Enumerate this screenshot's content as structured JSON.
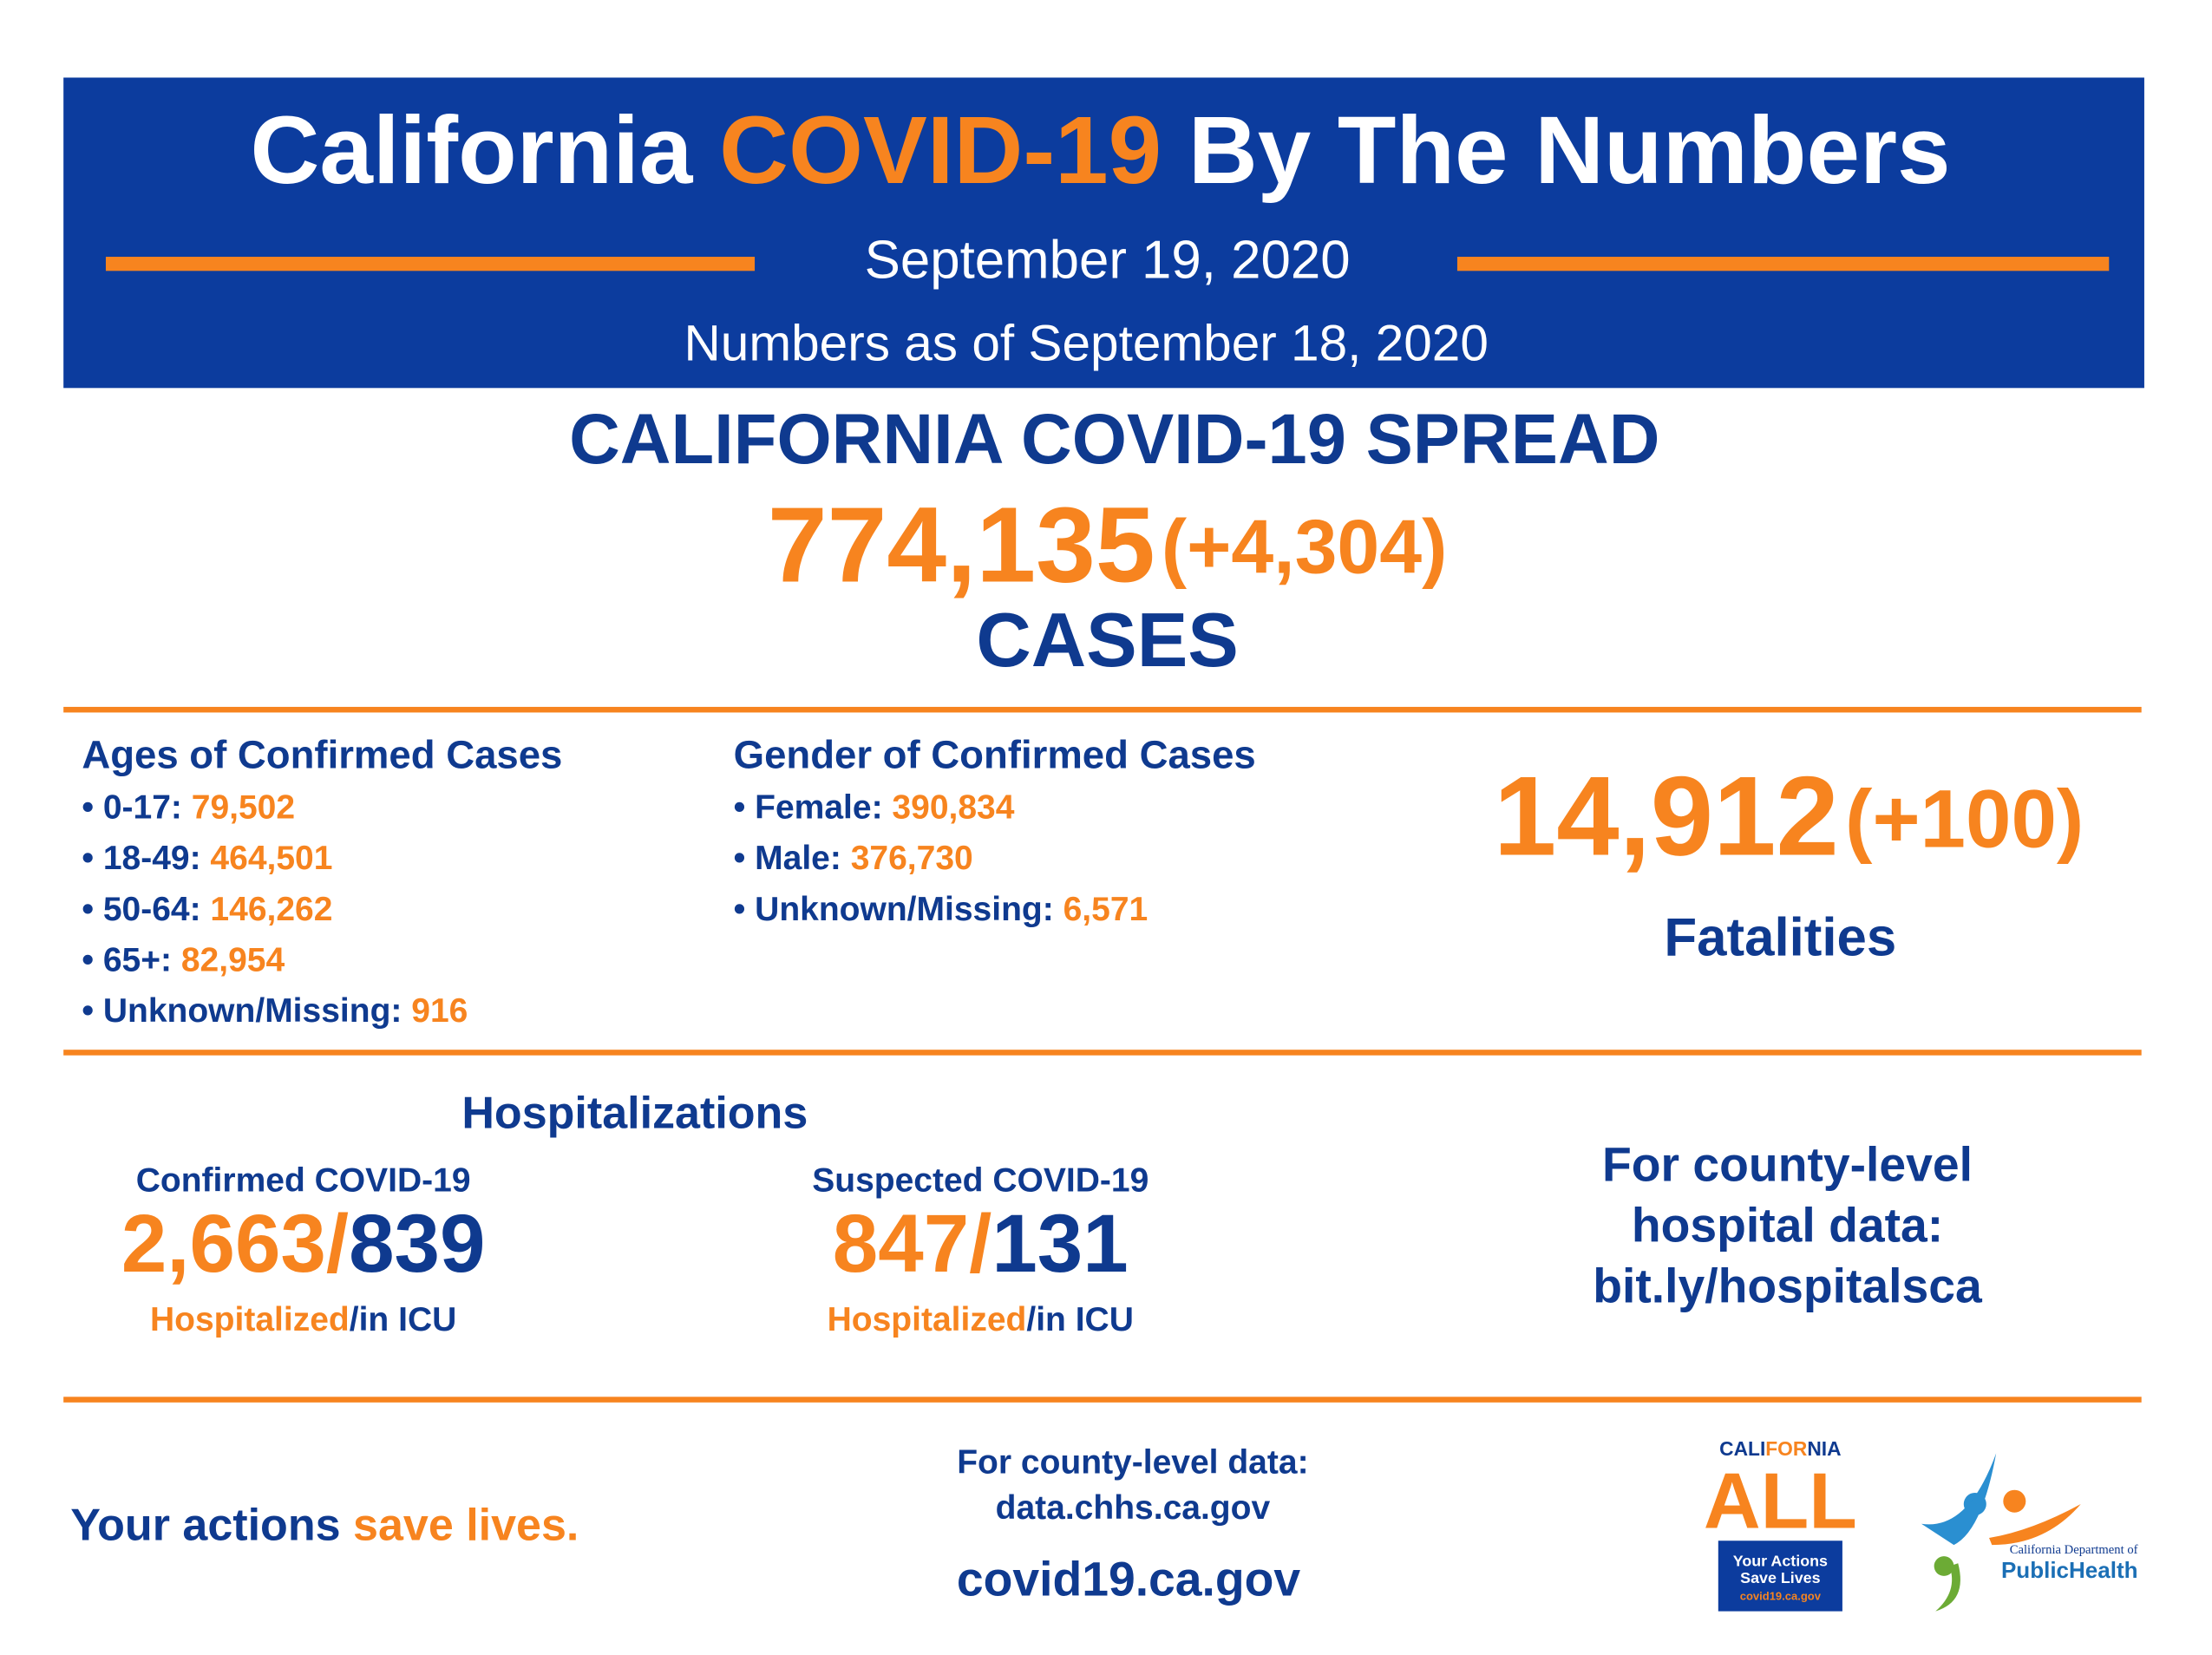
{
  "header": {
    "title": {
      "part1": "California",
      "part2": "COVID-19",
      "part3": "By The Numbers"
    },
    "date": "September 19, 2020",
    "as_of": "Numbers as of September 18, 2020"
  },
  "spread": {
    "title": "CALIFORNIA COVID-19 SPREAD",
    "total": "774,135",
    "change": "(+4,304)",
    "unit": "CASES"
  },
  "ages": {
    "title": "Ages of Confirmed Cases",
    "items": [
      {
        "label": "• 0-17:",
        "value": "79,502"
      },
      {
        "label": "• 18-49:",
        "value": "464,501"
      },
      {
        "label": "• 50-64:",
        "value": "146,262"
      },
      {
        "label": "• 65+:",
        "value": "82,954"
      },
      {
        "label": "• Unknown/Missing:",
        "value": "916"
      }
    ]
  },
  "gender": {
    "title": "Gender of Confirmed Cases",
    "items": [
      {
        "label": "• Female:",
        "value": "390,834"
      },
      {
        "label": "• Male:",
        "value": "376,730"
      },
      {
        "label": "• Unknown/Missing:",
        "value": "6,571"
      }
    ]
  },
  "fatalities": {
    "total": "14,912",
    "change": "(+100)",
    "label": "Fatalities"
  },
  "hospitalizations": {
    "title": "Hospitalizations",
    "groups": [
      {
        "label": "Confirmed COVID-19",
        "hospitalized": "2,663/",
        "icu": "839",
        "hospitalized_label": "Hospitalized",
        "icu_label": "/in ICU"
      },
      {
        "label": "Suspected COVID-19",
        "hospitalized": "847/",
        "icu": "131",
        "hospitalized_label": "Hospitalized",
        "icu_label": "/in ICU"
      }
    ]
  },
  "county_hospital": {
    "lines": [
      "For county-level",
      "hospital data:",
      "bit.ly/hospitalsca"
    ]
  },
  "footer": {
    "actions": {
      "part1": "Your actions",
      "part2": "save lives."
    },
    "county_data": [
      "For county-level data:",
      "data.chhs.ca.gov"
    ],
    "website": "covid19.ca.gov",
    "ca_all_logo": {
      "cali": "CALI",
      "for": "FOR",
      "nia": "NIA",
      "all": "ALL",
      "line1": "Your Actions",
      "line2": "Save Lives",
      "url": "covid19.ca.gov"
    },
    "cdph_logo": {
      "line1": "California Department of",
      "line2": "PublicHealth"
    }
  }
}
